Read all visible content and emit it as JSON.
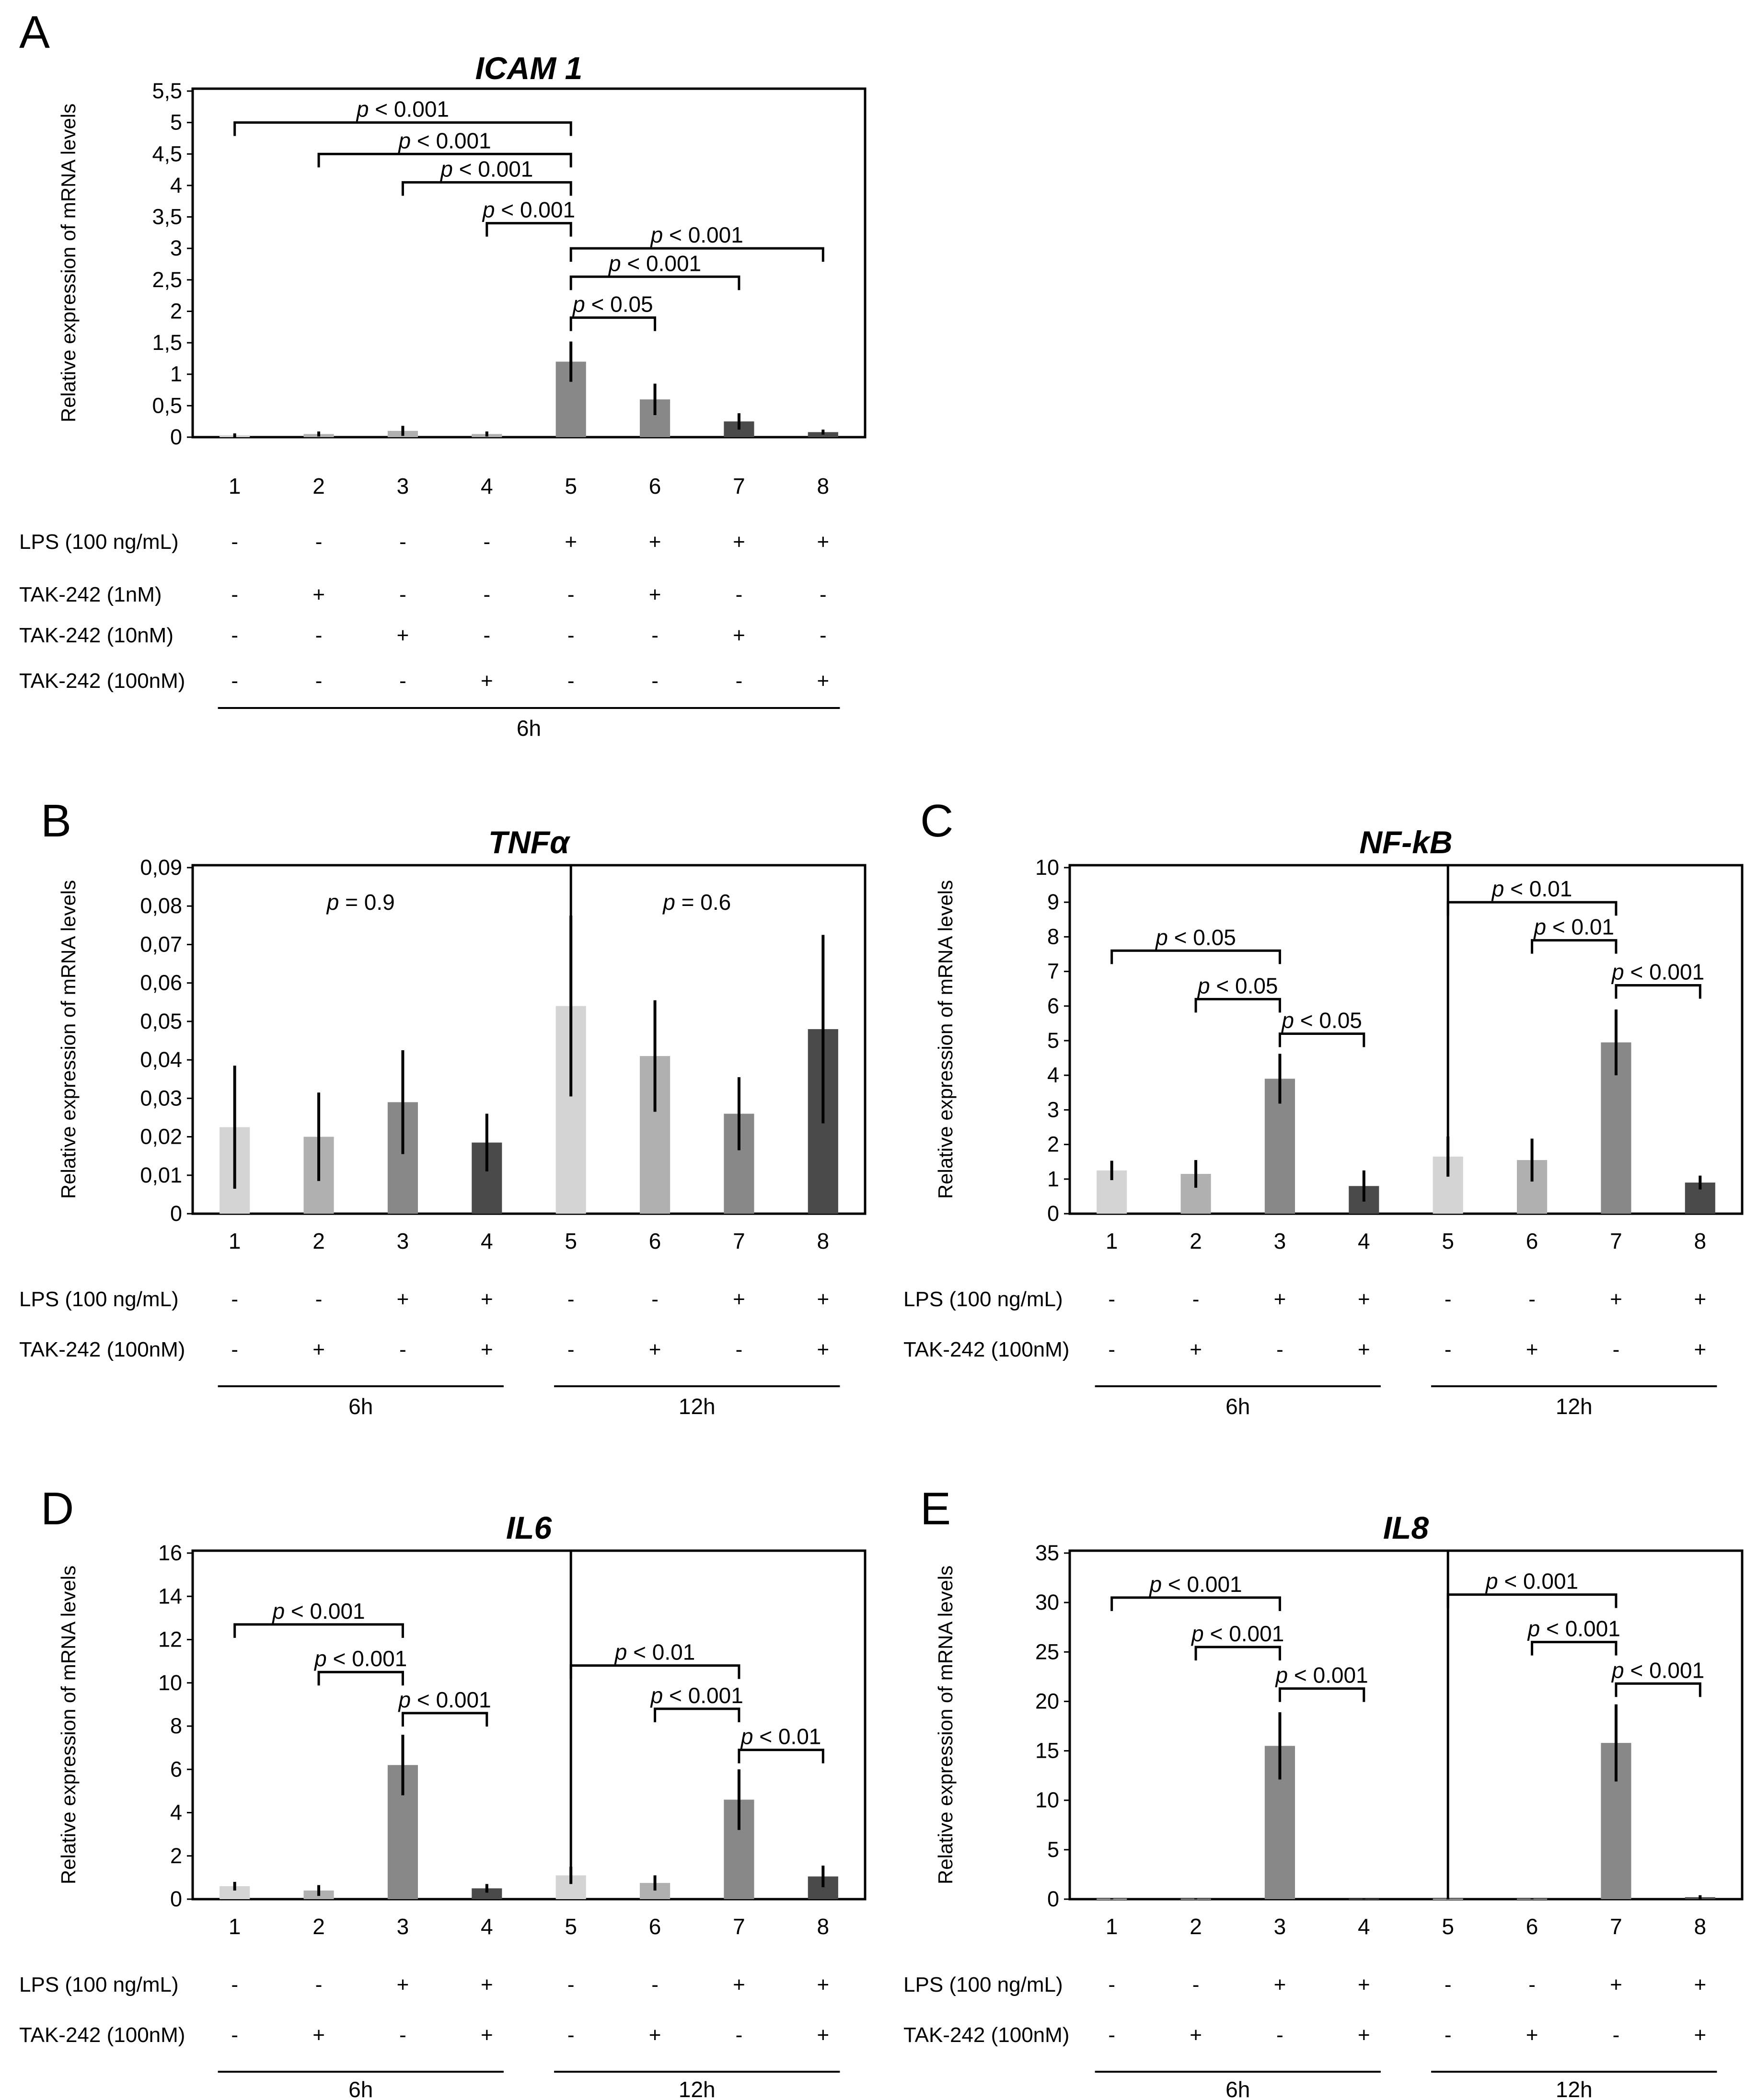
{
  "figure": {
    "bar_colors": [
      "#d4d4d4",
      "#b0b0b0",
      "#888888",
      "#4a4a4a"
    ],
    "ylabel": "Relative expression of mRNA levels"
  },
  "chart_data": [
    {
      "panel": "A",
      "type": "bar",
      "title": "ICAM 1",
      "ylabel": "Relative expression of mRNA levels",
      "categories": [
        "1",
        "2",
        "3",
        "4",
        "5",
        "6",
        "7",
        "8"
      ],
      "values": [
        0.03,
        0.05,
        0.1,
        0.05,
        1.2,
        0.6,
        0.25,
        0.08
      ],
      "errors": [
        0.03,
        0.04,
        0.08,
        0.04,
        0.32,
        0.25,
        0.13,
        0.04
      ],
      "color_index": [
        0,
        1,
        1,
        1,
        2,
        2,
        3,
        3
      ],
      "ylim": [
        0,
        5.5
      ],
      "yticks": [
        "0",
        "0,5",
        "1",
        "1,5",
        "2",
        "2,5",
        "3",
        "3,5",
        "4",
        "4,5",
        "5",
        "5,5"
      ],
      "dividers": [],
      "conditions": [
        {
          "label": "LPS (100 ng/mL)",
          "signs": [
            "-",
            "-",
            "-",
            "-",
            "+",
            "+",
            "+",
            "+"
          ]
        },
        {
          "label": "TAK-242 (1nM)",
          "signs": [
            "-",
            "+",
            "-",
            "-",
            "-",
            "+",
            "-",
            "-"
          ]
        },
        {
          "label": "TAK-242 (10nM)",
          "signs": [
            "-",
            "-",
            "+",
            "-",
            "-",
            "-",
            "+",
            "-"
          ]
        },
        {
          "label": "TAK-242 (100nM)",
          "signs": [
            "-",
            "-",
            "-",
            "+",
            "-",
            "-",
            "-",
            "+"
          ]
        }
      ],
      "timegroups": [
        {
          "label": "6h",
          "from": 1,
          "to": 8
        }
      ],
      "annotations": [
        {
          "from": 1,
          "to": 5,
          "y": 5.0,
          "p": "p",
          "text": " < 0.001"
        },
        {
          "from": 2,
          "to": 5,
          "y": 4.5,
          "p": "p",
          "text": " < 0.001"
        },
        {
          "from": 3,
          "to": 5,
          "y": 4.05,
          "p": "p",
          "text": " < 0.001"
        },
        {
          "from": 4,
          "to": 5,
          "y": 3.4,
          "p": "p",
          "text": " < 0.001"
        },
        {
          "from": 5,
          "to": 8,
          "y": 3.0,
          "p": "p",
          "text": " < 0.001"
        },
        {
          "from": 5,
          "to": 7,
          "y": 2.55,
          "p": "p",
          "text": " < 0.001"
        },
        {
          "from": 5,
          "to": 6,
          "y": 1.9,
          "p": "p",
          "text": " < 0.05"
        }
      ]
    },
    {
      "panel": "B",
      "type": "bar",
      "title": "TNFα",
      "ylabel": "Relative expression of mRNA levels",
      "categories": [
        "1",
        "2",
        "3",
        "4",
        "5",
        "6",
        "7",
        "8"
      ],
      "values": [
        0.0225,
        0.02,
        0.029,
        0.0185,
        0.054,
        0.041,
        0.026,
        0.048
      ],
      "errors": [
        0.016,
        0.0115,
        0.0135,
        0.0075,
        0.0235,
        0.0145,
        0.0095,
        0.0245
      ],
      "color_index": [
        0,
        1,
        2,
        3,
        0,
        1,
        2,
        3
      ],
      "ylim": [
        0,
        0.09
      ],
      "yticks": [
        "0",
        "0,01",
        "0,02",
        "0,03",
        "0,04",
        "0,05",
        "0,06",
        "0,07",
        "0,08",
        "0,09"
      ],
      "dividers": [
        4.5
      ],
      "conditions": [
        {
          "label": "LPS (100 ng/mL)",
          "signs": [
            "-",
            "-",
            "+",
            "+",
            "-",
            "-",
            "+",
            "+"
          ]
        },
        {
          "label": "TAK-242 (100nM)",
          "signs": [
            "-",
            "+",
            "-",
            "+",
            "-",
            "+",
            "-",
            "+"
          ]
        }
      ],
      "timegroups": [
        {
          "label": "6h",
          "from": 1,
          "to": 4
        },
        {
          "label": "12h",
          "from": 5,
          "to": 8
        }
      ],
      "annotations": [],
      "texts": [
        {
          "at": 2.5,
          "y": 0.079,
          "p": "p",
          "text": " = 0.9"
        },
        {
          "at": 6.5,
          "y": 0.079,
          "p": "p",
          "text": " = 0.6"
        }
      ]
    },
    {
      "panel": "C",
      "type": "bar",
      "title": "NF-kB",
      "ylabel": "Relative expression of mRNA levels",
      "categories": [
        "1",
        "2",
        "3",
        "4",
        "5",
        "6",
        "7",
        "8"
      ],
      "values": [
        1.25,
        1.15,
        3.9,
        0.8,
        1.65,
        1.55,
        4.95,
        0.9
      ],
      "errors": [
        0.28,
        0.4,
        0.72,
        0.45,
        0.58,
        0.62,
        0.95,
        0.2
      ],
      "color_index": [
        0,
        1,
        2,
        3,
        0,
        1,
        2,
        3
      ],
      "ylim": [
        0,
        10
      ],
      "yticks": [
        "0",
        "1",
        "2",
        "3",
        "4",
        "5",
        "6",
        "7",
        "8",
        "9",
        "10"
      ],
      "dividers": [
        4.5
      ],
      "conditions": [
        {
          "label": "LPS (100 ng/mL)",
          "signs": [
            "-",
            "-",
            "+",
            "+",
            "-",
            "-",
            "+",
            "+"
          ]
        },
        {
          "label": "TAK-242 (100nM)",
          "signs": [
            "-",
            "+",
            "-",
            "+",
            "-",
            "+",
            "-",
            "+"
          ]
        }
      ],
      "timegroups": [
        {
          "label": "6h",
          "from": 1,
          "to": 4
        },
        {
          "label": "12h",
          "from": 5,
          "to": 8
        }
      ],
      "annotations": [
        {
          "from": 1,
          "to": 3,
          "y": 7.6,
          "p": "p",
          "text": " < 0.05"
        },
        {
          "from": 2,
          "to": 3,
          "y": 6.2,
          "p": "p",
          "text": " < 0.05"
        },
        {
          "from": 3,
          "to": 4,
          "y": 5.2,
          "p": "p",
          "text": " < 0.05"
        },
        {
          "from": 5,
          "to": 7,
          "y": 9.0,
          "p": "p",
          "text": " < 0.01"
        },
        {
          "from": 6,
          "to": 7,
          "y": 7.9,
          "p": "p",
          "text": " < 0.01"
        },
        {
          "from": 7,
          "to": 8,
          "y": 6.6,
          "p": "p",
          "text": " < 0.001"
        }
      ]
    },
    {
      "panel": "D",
      "type": "bar",
      "title": "IL6",
      "ylabel": "Relative expression of mRNA levels",
      "categories": [
        "1",
        "2",
        "3",
        "4",
        "5",
        "6",
        "7",
        "8"
      ],
      "values": [
        0.6,
        0.4,
        6.2,
        0.5,
        1.1,
        0.75,
        4.6,
        1.05
      ],
      "errors": [
        0.2,
        0.25,
        1.4,
        0.2,
        0.4,
        0.35,
        1.4,
        0.5
      ],
      "color_index": [
        0,
        1,
        2,
        3,
        0,
        1,
        2,
        3
      ],
      "ylim": [
        0,
        16
      ],
      "yticks": [
        "0",
        "2",
        "4",
        "6",
        "8",
        "10",
        "12",
        "14",
        "16"
      ],
      "dividers": [
        4.5
      ],
      "conditions": [
        {
          "label": "LPS (100 ng/mL)",
          "signs": [
            "-",
            "-",
            "+",
            "+",
            "-",
            "-",
            "+",
            "+"
          ]
        },
        {
          "label": "TAK-242 (100nM)",
          "signs": [
            "-",
            "+",
            "-",
            "+",
            "-",
            "+",
            "-",
            "+"
          ]
        }
      ],
      "timegroups": [
        {
          "label": "6h",
          "from": 1,
          "to": 4
        },
        {
          "label": "12h",
          "from": 5,
          "to": 8
        }
      ],
      "annotations": [
        {
          "from": 1,
          "to": 3,
          "y": 12.7,
          "p": "p",
          "text": " < 0.001"
        },
        {
          "from": 2,
          "to": 3,
          "y": 10.5,
          "p": "p",
          "text": " < 0.001"
        },
        {
          "from": 3,
          "to": 4,
          "y": 8.6,
          "p": "p",
          "text": " < 0.001"
        },
        {
          "from": 5,
          "to": 7,
          "y": 10.8,
          "p": "p",
          "text": " < 0.01"
        },
        {
          "from": 6,
          "to": 7,
          "y": 8.8,
          "p": "p",
          "text": " < 0.001"
        },
        {
          "from": 7,
          "to": 8,
          "y": 6.9,
          "p": "p",
          "text": " < 0.01"
        }
      ]
    },
    {
      "panel": "E",
      "type": "bar",
      "title": "IL8",
      "ylabel": "Relative expression of mRNA levels",
      "categories": [
        "1",
        "2",
        "3",
        "4",
        "5",
        "6",
        "7",
        "8"
      ],
      "values": [
        0.05,
        0.05,
        15.5,
        0.05,
        0.05,
        0.05,
        15.8,
        0.2
      ],
      "errors": [
        0.05,
        0.05,
        3.4,
        0.05,
        0.05,
        0.05,
        3.9,
        0.2
      ],
      "color_index": [
        0,
        1,
        2,
        3,
        0,
        1,
        2,
        3
      ],
      "ylim": [
        0,
        35
      ],
      "yticks": [
        "0",
        "5",
        "10",
        "15",
        "20",
        "25",
        "30",
        "35"
      ],
      "dividers": [
        4.5
      ],
      "conditions": [
        {
          "label": "LPS (100 ng/mL)",
          "signs": [
            "-",
            "-",
            "+",
            "+",
            "-",
            "-",
            "+",
            "+"
          ]
        },
        {
          "label": "TAK-242 (100nM)",
          "signs": [
            "-",
            "+",
            "-",
            "+",
            "-",
            "+",
            "-",
            "+"
          ]
        }
      ],
      "timegroups": [
        {
          "label": "6h",
          "from": 1,
          "to": 4
        },
        {
          "label": "12h",
          "from": 5,
          "to": 8
        }
      ],
      "annotations": [
        {
          "from": 1,
          "to": 3,
          "y": 30.5,
          "p": "p",
          "text": " < 0.001"
        },
        {
          "from": 2,
          "to": 3,
          "y": 25.5,
          "p": "p",
          "text": " < 0.001"
        },
        {
          "from": 3,
          "to": 4,
          "y": 21.3,
          "p": "p",
          "text": " < 0.001"
        },
        {
          "from": 5,
          "to": 7,
          "y": 30.8,
          "p": "p",
          "text": " < 0.001"
        },
        {
          "from": 6,
          "to": 7,
          "y": 26.0,
          "p": "p",
          "text": " < 0.001"
        },
        {
          "from": 7,
          "to": 8,
          "y": 21.8,
          "p": "p",
          "text": " < 0.001"
        }
      ]
    }
  ]
}
